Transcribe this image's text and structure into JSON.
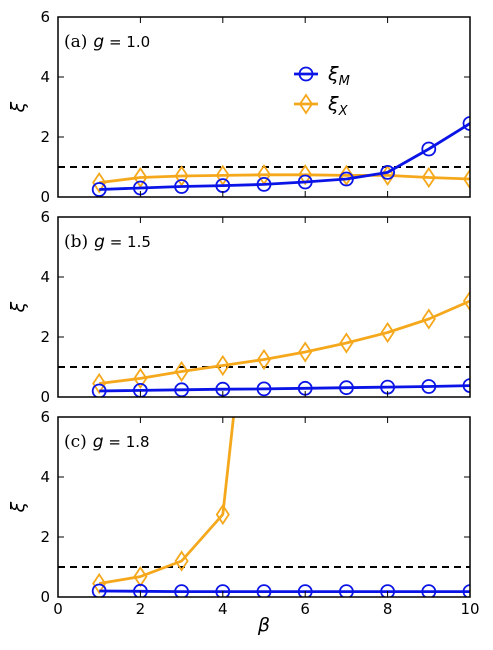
{
  "colors": {
    "xi_M": "#0a14e6",
    "xi_X": "#f5a81c",
    "reference": "#000000"
  },
  "legend": {
    "placement": "top-center of panel (a)",
    "entries": [
      {
        "series": "xi_M",
        "label": "ξ_M",
        "marker": "circle"
      },
      {
        "series": "xi_X",
        "label": "ξ_X",
        "marker": "diamond"
      }
    ]
  },
  "chart_data": [
    {
      "type": "line",
      "panel_label": "(a)",
      "title": "g = 1.0",
      "title_italic": "g",
      "title_rest": " = 1.0",
      "xlabel": "",
      "ylabel": "ξ",
      "xlim": [
        0,
        10
      ],
      "ylim": [
        0,
        6
      ],
      "x_ticks": [
        0,
        2,
        4,
        6,
        8,
        10
      ],
      "y_ticks": [
        0,
        2,
        4,
        6
      ],
      "show_x_tick_labels": false,
      "reference_line": 1,
      "x": [
        1,
        2,
        3,
        4,
        5,
        6,
        7,
        8,
        9,
        10
      ],
      "series": [
        {
          "id": "xi_M",
          "marker": "circle",
          "values": [
            0.25,
            0.3,
            0.35,
            0.38,
            0.42,
            0.5,
            0.6,
            0.82,
            1.6,
            2.45
          ]
        },
        {
          "id": "xi_X",
          "marker": "diamond",
          "values": [
            0.48,
            0.65,
            0.7,
            0.72,
            0.74,
            0.74,
            0.72,
            0.72,
            0.65,
            0.6
          ]
        }
      ]
    },
    {
      "type": "line",
      "panel_label": "(b)",
      "title": "g = 1.5",
      "title_italic": "g",
      "title_rest": " = 1.5",
      "xlabel": "",
      "ylabel": "ξ",
      "xlim": [
        0,
        10
      ],
      "ylim": [
        0,
        6
      ],
      "x_ticks": [
        0,
        2,
        4,
        6,
        8,
        10
      ],
      "y_ticks": [
        0,
        2,
        4,
        6
      ],
      "show_x_tick_labels": false,
      "reference_line": 1,
      "x": [
        1,
        2,
        3,
        4,
        5,
        6,
        7,
        8,
        9,
        10
      ],
      "series": [
        {
          "id": "xi_M",
          "marker": "circle",
          "values": [
            0.2,
            0.22,
            0.24,
            0.26,
            0.27,
            0.29,
            0.31,
            0.33,
            0.35,
            0.38
          ]
        },
        {
          "id": "xi_X",
          "marker": "diamond",
          "values": [
            0.45,
            0.62,
            0.85,
            1.05,
            1.25,
            1.5,
            1.8,
            2.15,
            2.6,
            3.2
          ]
        }
      ]
    },
    {
      "type": "line",
      "panel_label": "(c)",
      "title": "g = 1.8",
      "title_italic": "g",
      "title_rest": " = 1.8",
      "xlabel": "β",
      "ylabel": "ξ",
      "xlim": [
        0,
        10
      ],
      "ylim": [
        0,
        6
      ],
      "x_ticks": [
        0,
        2,
        4,
        6,
        8,
        10
      ],
      "y_ticks": [
        0,
        2,
        4,
        6
      ],
      "show_x_tick_labels": true,
      "reference_line": 1,
      "x": [
        1,
        2,
        3,
        4,
        5,
        6,
        7,
        8,
        9,
        10
      ],
      "series": [
        {
          "id": "xi_M",
          "marker": "circle",
          "values": [
            0.2,
            0.19,
            0.18,
            0.18,
            0.18,
            0.18,
            0.18,
            0.18,
            0.18,
            0.18
          ]
        },
        {
          "id": "xi_X",
          "marker": "diamond",
          "x": [
            1,
            2,
            3,
            4,
            4.3
          ],
          "values": [
            0.45,
            0.68,
            1.2,
            2.75,
            6.5
          ]
        }
      ]
    }
  ]
}
